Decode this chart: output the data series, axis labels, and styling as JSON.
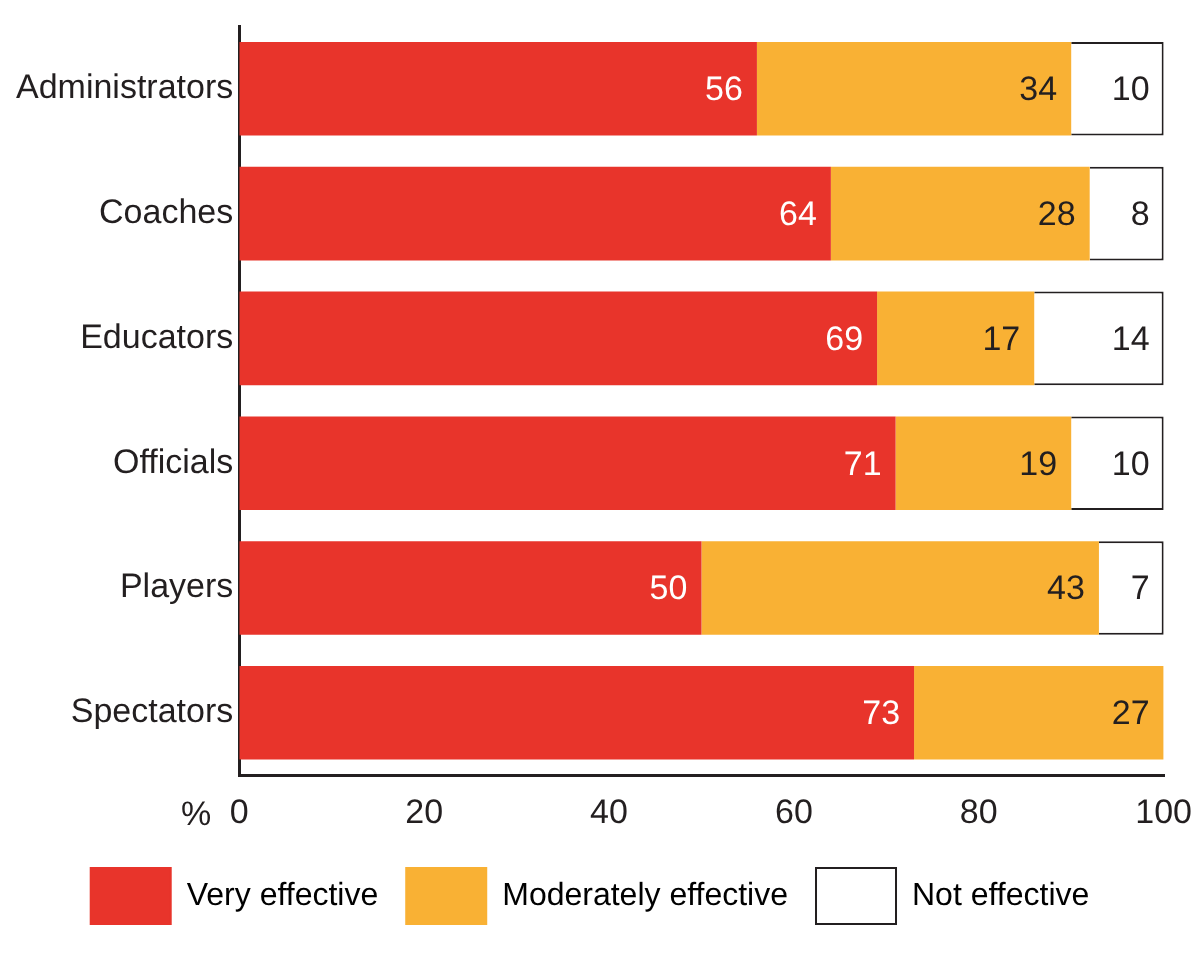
{
  "chart_data": {
    "type": "bar",
    "orientation": "horizontal",
    "stacked": true,
    "categories": [
      "Administrators",
      "Coaches",
      "Educators",
      "Officials",
      "Players",
      "Spectators"
    ],
    "series": [
      {
        "name": "Very effective",
        "color": "#e8342b",
        "values": [
          56,
          64,
          69,
          71,
          50,
          73
        ],
        "value_labels": [
          "56",
          "64",
          "69",
          "71",
          "50",
          "73"
        ]
      },
      {
        "name": "Moderately effective",
        "color": "#f9b134",
        "values": [
          34,
          28,
          17,
          19,
          43,
          27
        ],
        "value_labels": [
          "34",
          "28",
          "17",
          "19",
          "43",
          "27"
        ]
      },
      {
        "name": "Not effective",
        "color": "#ffffff",
        "values": [
          10,
          8,
          14,
          10,
          7,
          0
        ],
        "value_labels": [
          "10",
          "8",
          "14",
          "10",
          "7",
          null
        ]
      }
    ],
    "xlabel": "%",
    "xlim": [
      0,
      100
    ],
    "xticks": [
      0,
      20,
      40,
      60,
      80,
      100
    ],
    "grid": false,
    "legend": "bottom"
  }
}
